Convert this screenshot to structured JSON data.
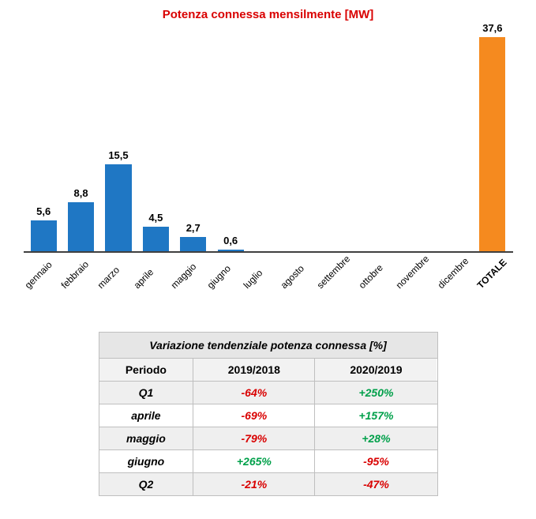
{
  "chart": {
    "type": "bar",
    "title": "Potenza connessa mensilmente [MW]",
    "title_color": "#d90000",
    "title_fontsize": 15,
    "categories": [
      "gennaio",
      "febbraio",
      "marzo",
      "aprile",
      "maggio",
      "giugno",
      "luglio",
      "agosto",
      "settembre",
      "ottobre",
      "novembre",
      "dicembre",
      "TOTALE"
    ],
    "values": [
      5.6,
      8.8,
      15.5,
      4.5,
      2.7,
      0.6,
      null,
      null,
      null,
      null,
      null,
      null,
      37.6
    ],
    "value_labels": [
      "5,6",
      "8,8",
      "15,5",
      "4,5",
      "2,7",
      "0,6",
      "",
      "",
      "",
      "",
      "",
      "",
      "37,6"
    ],
    "bar_colors": [
      "#1f77c4",
      "#1f77c4",
      "#1f77c4",
      "#1f77c4",
      "#1f77c4",
      "#1f77c4",
      "#1f77c4",
      "#1f77c4",
      "#1f77c4",
      "#1f77c4",
      "#1f77c4",
      "#1f77c4",
      "#f58a1f"
    ],
    "ymax": 40,
    "background_color": "#ffffff",
    "axis_color": "#404040",
    "label_color": "#000000",
    "label_fontsize": 13,
    "xlabel_fontsize": 12,
    "xlabel_rotation_deg": -45
  },
  "table": {
    "title": "Variazione tendenziale potenza connessa [%]",
    "columns": [
      "Periodo",
      "2019/2018",
      "2020/2019"
    ],
    "rows": [
      {
        "period": "Q1",
        "cells": [
          {
            "text": "-64%",
            "color": "#d90000"
          },
          {
            "text": "+250%",
            "color": "#00a04a"
          }
        ]
      },
      {
        "period": "aprile",
        "cells": [
          {
            "text": "-69%",
            "color": "#d90000"
          },
          {
            "text": "+157%",
            "color": "#00a04a"
          }
        ]
      },
      {
        "period": "maggio",
        "cells": [
          {
            "text": "-79%",
            "color": "#d90000"
          },
          {
            "text": "+28%",
            "color": "#00a04a"
          }
        ]
      },
      {
        "period": "giugno",
        "cells": [
          {
            "text": "+265%",
            "color": "#00a04a"
          },
          {
            "text": "-95%",
            "color": "#d90000"
          }
        ]
      },
      {
        "period": "Q2",
        "cells": [
          {
            "text": "-21%",
            "color": "#d90000"
          },
          {
            "text": "-47%",
            "color": "#d90000"
          }
        ]
      }
    ],
    "border_color": "#bfbfbf",
    "header_bg": "#f2f2f2",
    "title_bg": "#e6e6e6",
    "row_alt_bg": "#efefef",
    "fontsize": 14
  }
}
